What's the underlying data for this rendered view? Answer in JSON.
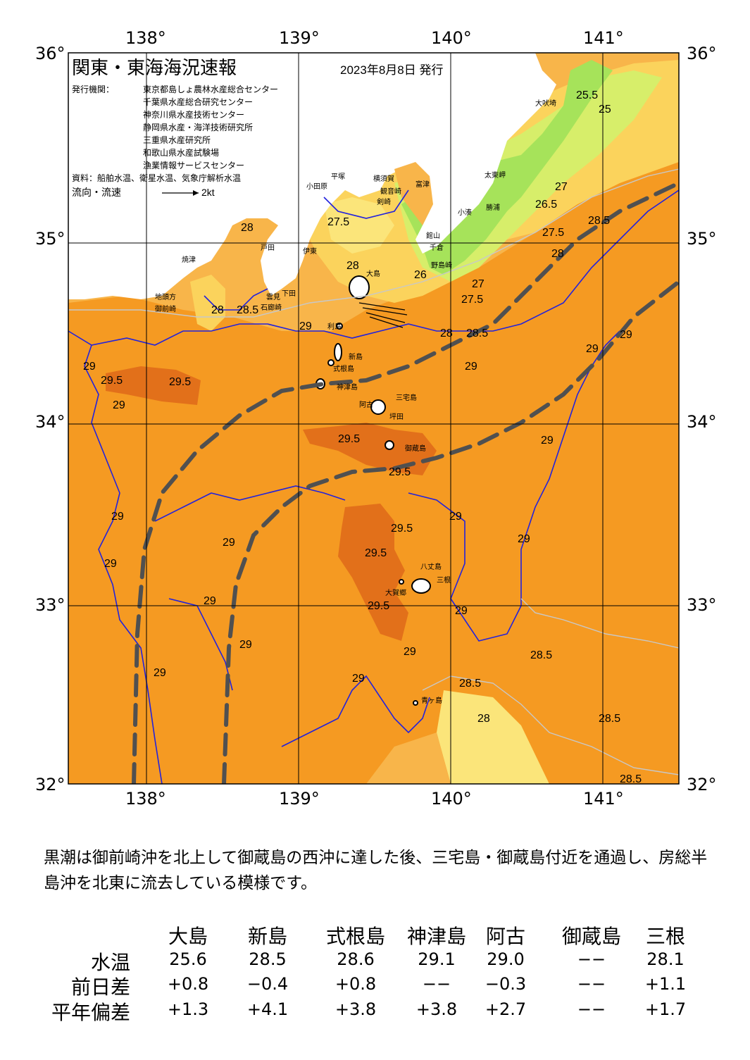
{
  "map": {
    "title": "関東・東海海況速報",
    "date": "2023年8月8日 発行",
    "issuer_label": "発行機関：",
    "issuers": [
      "東京都島しょ農林水産総合センター",
      "千葉県水産総合研究センター",
      "神奈川県水産技術センター",
      "静岡県水産・海洋技術研究所",
      "三重県水産研究所",
      "和歌山県水産試験場",
      "漁業情報サービスセンター"
    ],
    "source": "資料：船舶水温、衛星水温、気象庁解析水温",
    "legend_label": "流向・流速",
    "legend_speed": "2kt",
    "lon_ticks": [
      "138°",
      "139°",
      "140°",
      "141°"
    ],
    "lat_ticks": [
      "36°",
      "35°",
      "34°",
      "33°",
      "32°"
    ],
    "places": [
      {
        "name": "大吠埼"
      },
      {
        "name": "太東岬"
      },
      {
        "name": "勝浦"
      },
      {
        "name": "小湊"
      },
      {
        "name": "富津"
      },
      {
        "name": "横須賀"
      },
      {
        "name": "平塚"
      },
      {
        "name": "小田原"
      },
      {
        "name": "観音崎"
      },
      {
        "name": "剣崎"
      },
      {
        "name": "館山"
      },
      {
        "name": "千倉"
      },
      {
        "name": "野島崎"
      },
      {
        "name": "大島"
      },
      {
        "name": "利島"
      },
      {
        "name": "新島"
      },
      {
        "name": "式根島"
      },
      {
        "name": "神津島"
      },
      {
        "name": "三宅島"
      },
      {
        "name": "阿古"
      },
      {
        "name": "坪田"
      },
      {
        "name": "御蔵島"
      },
      {
        "name": "八丈島"
      },
      {
        "name": "三根"
      },
      {
        "name": "大賀郷"
      },
      {
        "name": "青ヶ島"
      },
      {
        "name": "焼津"
      },
      {
        "name": "地頭方"
      },
      {
        "name": "御前崎"
      },
      {
        "name": "伊東"
      },
      {
        "name": "下田"
      },
      {
        "name": "石廊崎"
      },
      {
        "name": "雲見"
      },
      {
        "name": "戸田"
      }
    ],
    "contour_labels": [
      "29.5",
      "29",
      "28.5",
      "28",
      "27.5",
      "27",
      "26.5",
      "26",
      "25.5",
      "25"
    ]
  },
  "summary": "黒潮は御前崎沖を北上して御蔵島の西沖に達した後、三宅島・御蔵島付近を通過し、房総半島沖を北東に流去している模様です。",
  "table": {
    "columns": [
      "大島",
      "新島",
      "式根島",
      "神津島",
      "阿古",
      "御蔵島",
      "三根"
    ],
    "rows": [
      {
        "label": "水温",
        "values": [
          "25.6",
          "28.5",
          "28.6",
          "29.1",
          "29.0",
          "−−",
          "28.1"
        ]
      },
      {
        "label": "前日差",
        "values": [
          "+0.8",
          "−0.4",
          "+0.8",
          "−−",
          "−0.3",
          "−−",
          "+1.1"
        ]
      },
      {
        "label": "平年偏差",
        "values": [
          "+1.3",
          "+4.1",
          "+3.8",
          "+3.8",
          "+2.7",
          "−−",
          "+1.7"
        ]
      }
    ]
  },
  "colors": {
    "sea_main": "#f59a22",
    "sea_warm": "#e2701a",
    "sea_cool": "#f8b54a",
    "sea_yellow": "#fbd35c",
    "sea_pale": "#fbe57a",
    "sea_green": "#a6e35a",
    "sea_lime": "#d7ee6a",
    "kuroshio": "#505050",
    "isoline": "#2222dd"
  }
}
